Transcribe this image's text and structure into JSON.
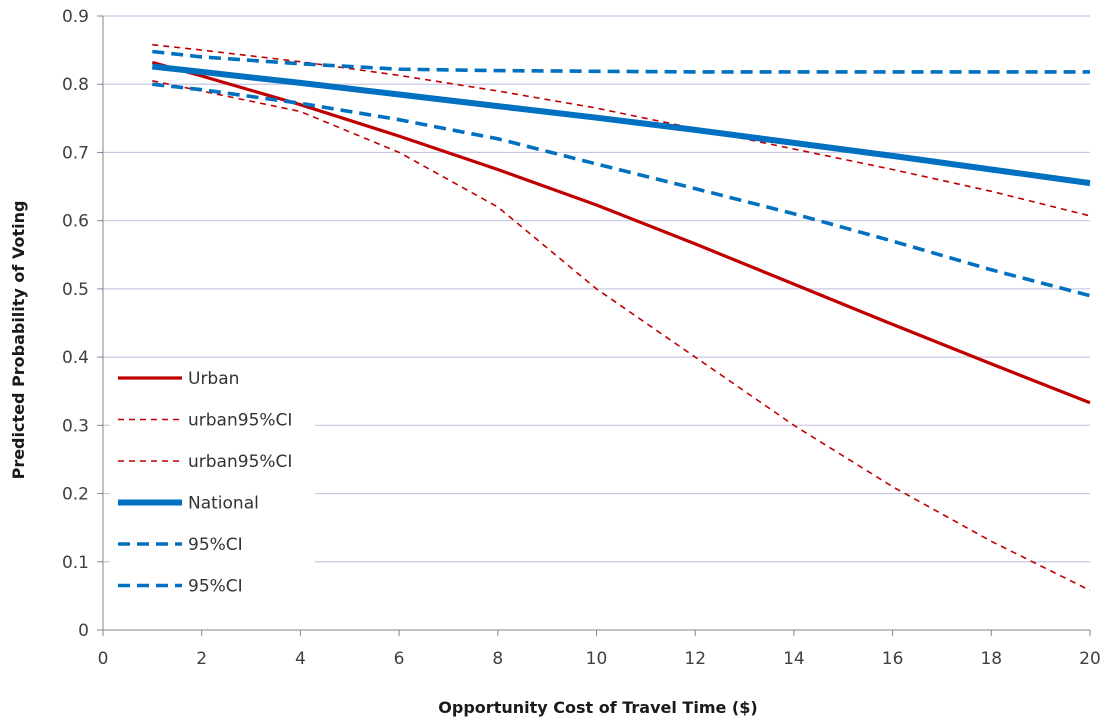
{
  "chart_data": {
    "type": "line",
    "title": "",
    "xlabel": "Opportunity Cost of Travel Time ($)",
    "ylabel": "Predicted Probability of Voting",
    "xlim": [
      0,
      20
    ],
    "ylim": [
      0,
      0.9
    ],
    "x_ticks": [
      "0",
      "2",
      "4",
      "6",
      "8",
      "10",
      "12",
      "14",
      "16",
      "18",
      "20"
    ],
    "y_ticks": [
      "0",
      "0.1",
      "0.2",
      "0.3",
      "0.4",
      "0.5",
      "0.6",
      "0.7",
      "0.8",
      "0.9"
    ],
    "grid": "horizontal",
    "legend_position": "lower-left",
    "series": [
      {
        "name": "Urban",
        "color": "#c00000",
        "style": "solid-thin",
        "x": [
          1,
          2,
          4,
          6,
          8,
          10,
          12,
          14,
          16,
          18,
          20
        ],
        "y": [
          0.832,
          0.812,
          0.77,
          0.724,
          0.675,
          0.623,
          0.566,
          0.507,
          0.448,
          0.39,
          0.333
        ]
      },
      {
        "name": "urban95%CI",
        "color": "#c00000",
        "style": "dashed-thin",
        "x": [
          1,
          2,
          4,
          6,
          8,
          10,
          12,
          14,
          16,
          18,
          20
        ],
        "y": [
          0.858,
          0.85,
          0.833,
          0.813,
          0.79,
          0.765,
          0.735,
          0.705,
          0.675,
          0.643,
          0.607
        ]
      },
      {
        "name": "urban95%CI",
        "color": "#c00000",
        "style": "dashed-thin",
        "x": [
          1,
          2,
          4,
          6,
          8,
          10,
          12,
          14,
          16,
          18,
          20
        ],
        "y": [
          0.805,
          0.79,
          0.76,
          0.7,
          0.62,
          0.5,
          0.4,
          0.3,
          0.21,
          0.13,
          0.058
        ]
      },
      {
        "name": "National",
        "color": "#0070c0",
        "style": "solid-thick",
        "x": [
          1,
          2,
          4,
          6,
          8,
          10,
          12,
          14,
          16,
          18,
          20
        ],
        "y": [
          0.826,
          0.818,
          0.802,
          0.785,
          0.768,
          0.751,
          0.733,
          0.714,
          0.695,
          0.675,
          0.655
        ]
      },
      {
        "name": "95%CI",
        "color": "#0070c0",
        "style": "dashed-thick",
        "x": [
          1,
          2,
          4,
          6,
          8,
          10,
          12,
          14,
          16,
          18,
          20
        ],
        "y": [
          0.848,
          0.84,
          0.83,
          0.822,
          0.82,
          0.819,
          0.818,
          0.818,
          0.818,
          0.818,
          0.818
        ]
      },
      {
        "name": "95%CI",
        "color": "#0070c0",
        "style": "dashed-thick",
        "x": [
          1,
          2,
          4,
          6,
          8,
          10,
          12,
          14,
          16,
          18,
          20
        ],
        "y": [
          0.8,
          0.792,
          0.772,
          0.748,
          0.72,
          0.683,
          0.647,
          0.61,
          0.57,
          0.528,
          0.49
        ]
      }
    ]
  }
}
